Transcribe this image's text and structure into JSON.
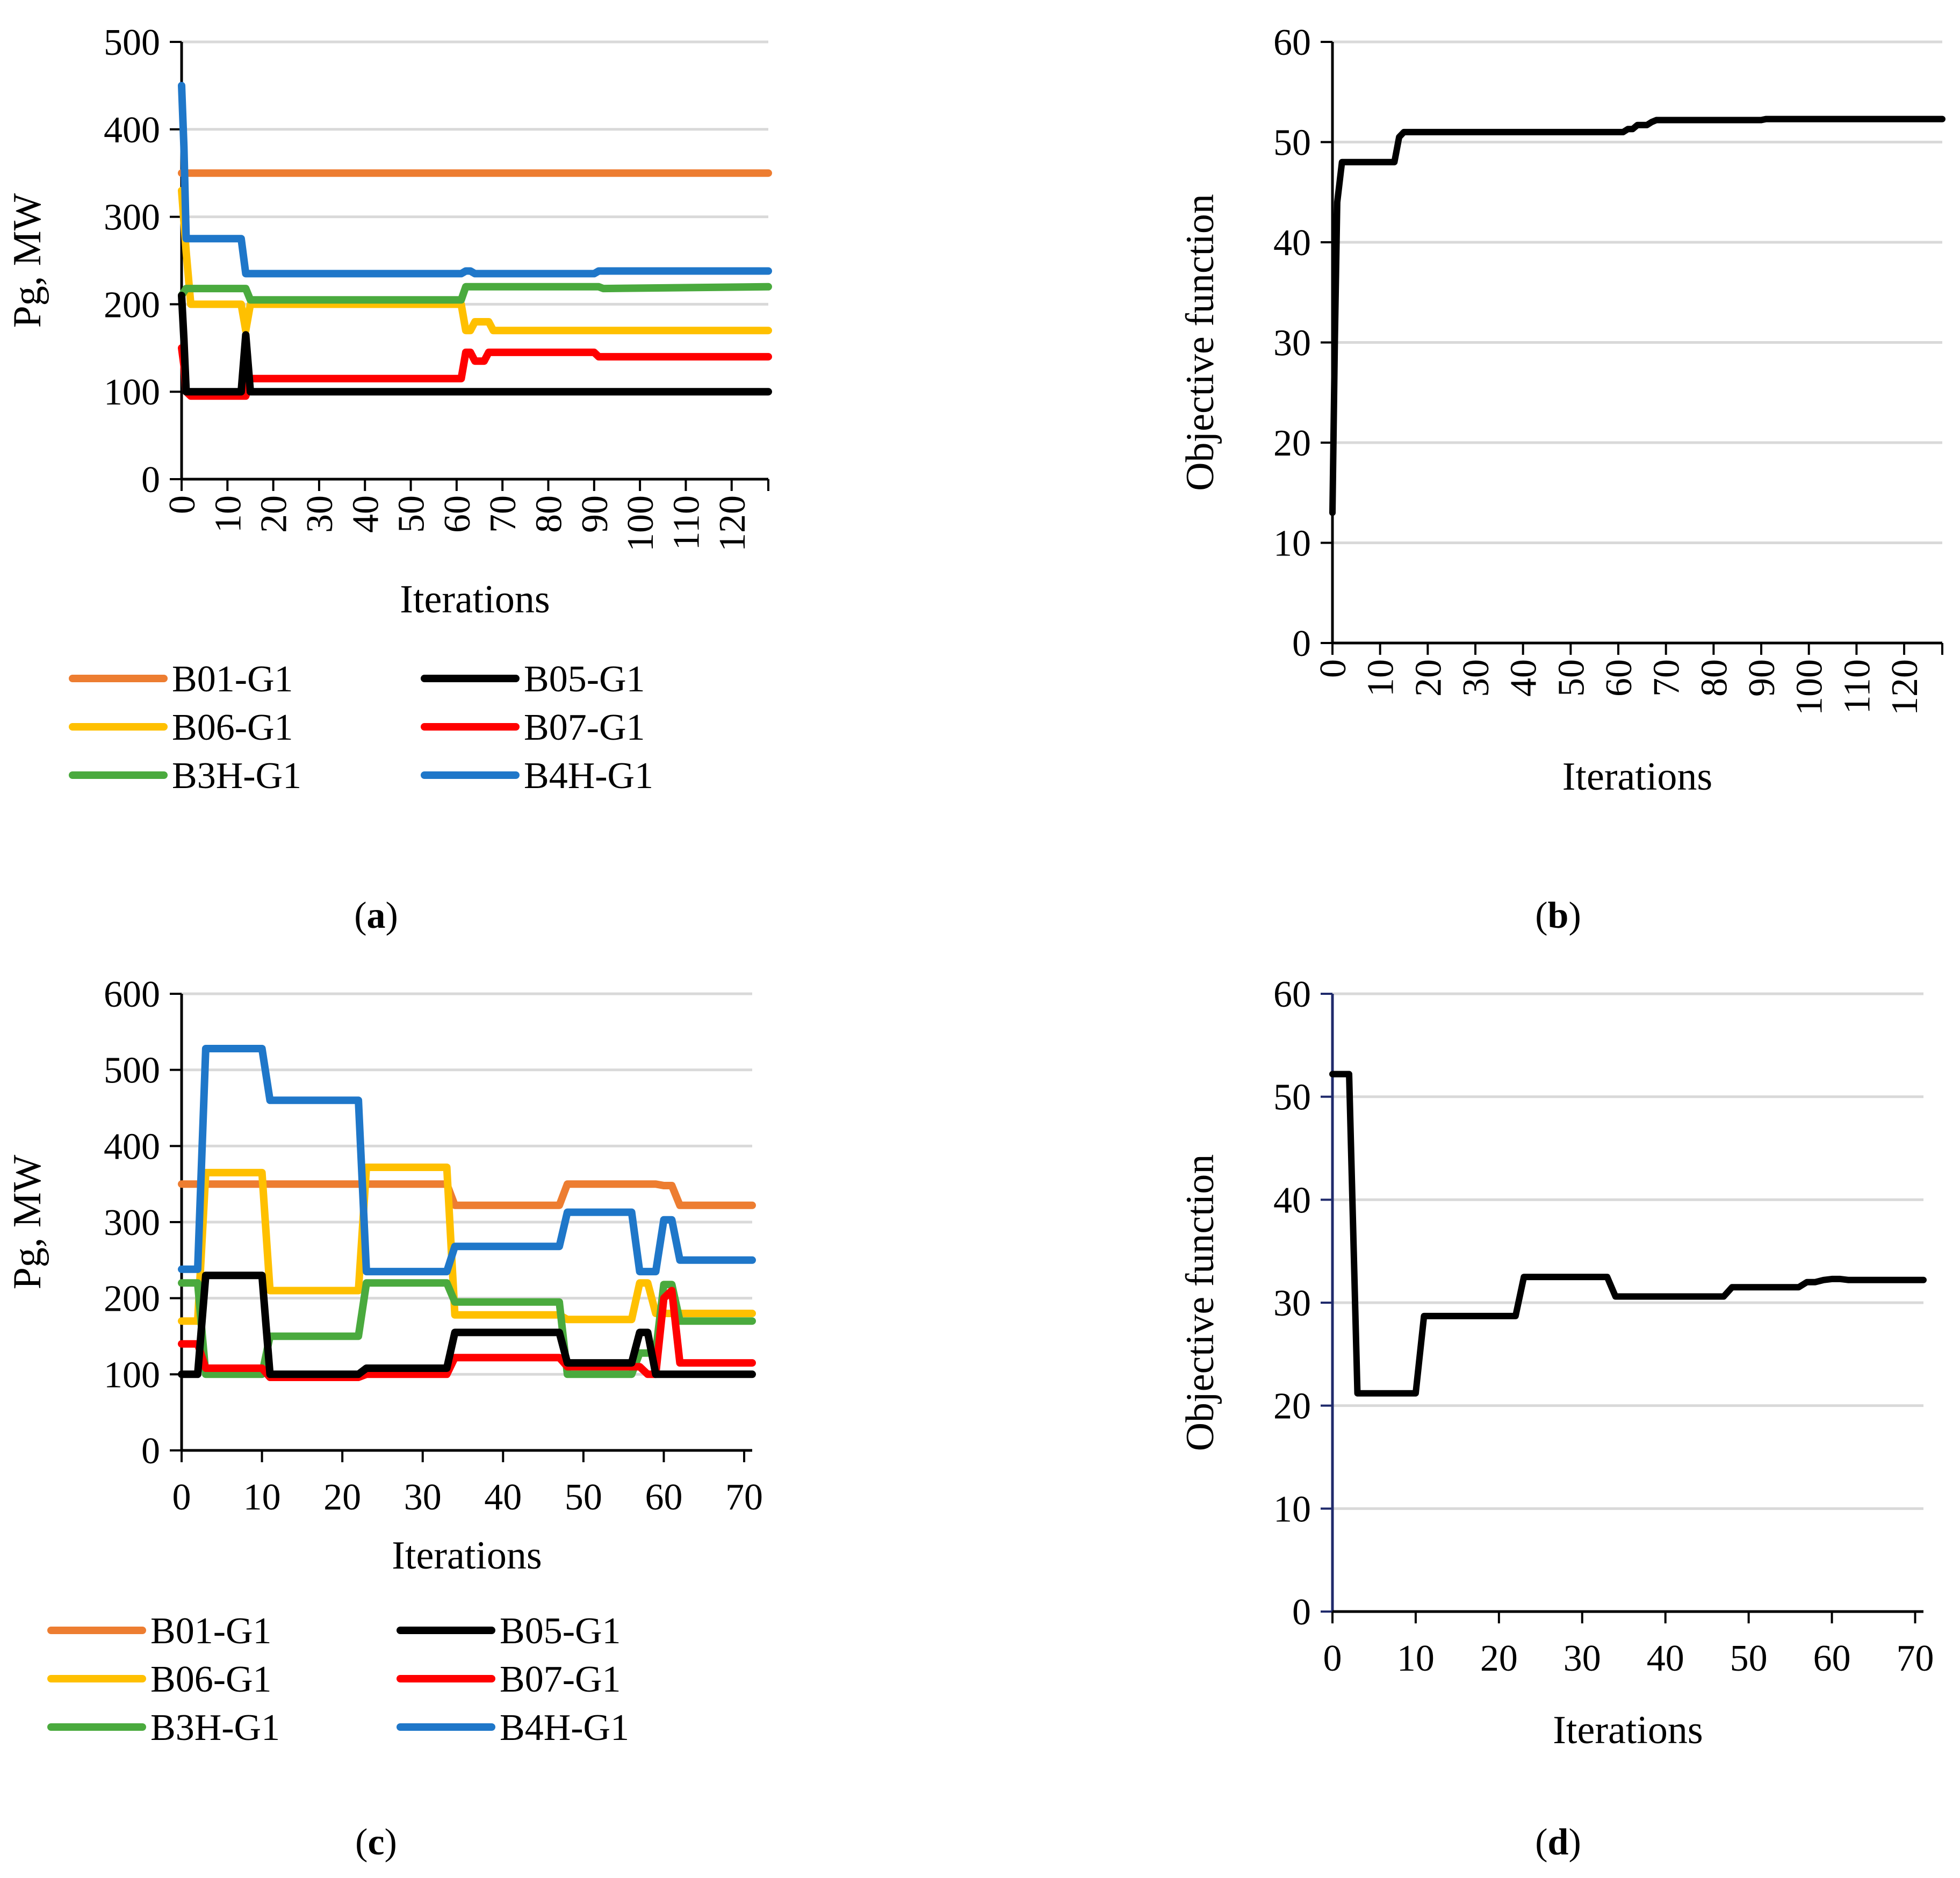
{
  "colors": {
    "B01-G1": "#ED7D31",
    "B05-G1": "#000000",
    "B06-G1": "#FFC000",
    "B07-G1": "#FF0000",
    "B3H-G1": "#4AAA3E",
    "B4H-G1": "#1F77C9",
    "grid": "#D9D9D9",
    "axis_d": "#1F2A6B"
  },
  "captions": {
    "a": "a",
    "b": "b",
    "c": "c",
    "d": "d"
  },
  "chart_data": [
    {
      "id": "a",
      "type": "line",
      "xlabel": "Iterations",
      "ylabel": "Pg,  MW",
      "ylim": [
        0,
        500
      ],
      "yticks": [
        "0",
        "100",
        "200",
        "300",
        "400",
        "500"
      ],
      "xlim": [
        0,
        128
      ],
      "xticks": [
        "0",
        "10",
        "20",
        "30",
        "40",
        "50",
        "60",
        "70",
        "80",
        "90",
        "100",
        "110",
        "120"
      ],
      "xtick_rotation": "vertical",
      "grid": "horizontal",
      "legend_position": "bottom",
      "series": [
        {
          "name": "B01-G1",
          "x": [
            0,
            1,
            128
          ],
          "y": [
            350,
            350,
            350
          ]
        },
        {
          "name": "B05-G1",
          "x": [
            0,
            0.5,
            1,
            2,
            13,
            14,
            15,
            128
          ],
          "y": [
            210,
            160,
            100,
            100,
            100,
            165,
            100,
            100
          ]
        },
        {
          "name": "B06-G1",
          "x": [
            0,
            1,
            2,
            13,
            14,
            15,
            61,
            62,
            63,
            64,
            67,
            68,
            128
          ],
          "y": [
            330,
            260,
            200,
            200,
            170,
            200,
            200,
            170,
            170,
            180,
            180,
            170,
            170
          ]
        },
        {
          "name": "B07-G1",
          "x": [
            0,
            0.5,
            1,
            2,
            14,
            15,
            61,
            62,
            63,
            64,
            66,
            67,
            90,
            91,
            128
          ],
          "y": [
            150,
            130,
            100,
            95,
            95,
            115,
            115,
            145,
            145,
            135,
            135,
            145,
            145,
            140,
            140
          ]
        },
        {
          "name": "B3H-G1",
          "x": [
            0,
            1,
            13,
            14,
            15,
            61,
            62,
            63,
            91,
            92,
            128
          ],
          "y": [
            210,
            218,
            218,
            218,
            205,
            205,
            220,
            220,
            220,
            218,
            220
          ]
        },
        {
          "name": "B4H-G1",
          "x": [
            0,
            0.5,
            1,
            13,
            14,
            15,
            61,
            62,
            63,
            64,
            90,
            91,
            92,
            128
          ],
          "y": [
            450,
            380,
            275,
            275,
            235,
            235,
            235,
            238,
            238,
            235,
            235,
            238,
            238,
            238
          ]
        }
      ],
      "legend": [
        "B01-G1",
        "B05-G1",
        "B06-G1",
        "B07-G1",
        "B3H-G1",
        "B4H-G1"
      ]
    },
    {
      "id": "b",
      "type": "line",
      "xlabel": "Iterations",
      "ylabel": "Objective function",
      "ylim": [
        0,
        60
      ],
      "yticks": [
        "0",
        "10",
        "20",
        "30",
        "40",
        "50",
        "60"
      ],
      "xlim": [
        0,
        128
      ],
      "xticks": [
        "0",
        "10",
        "20",
        "30",
        "40",
        "50",
        "60",
        "70",
        "80",
        "90",
        "100",
        "110",
        "120"
      ],
      "xtick_rotation": "vertical",
      "grid": "horizontal",
      "series": [
        {
          "name": "",
          "x": [
            0,
            0.5,
            1,
            2,
            13,
            14,
            15,
            61,
            62,
            63,
            64,
            66,
            67,
            68,
            90,
            91,
            128
          ],
          "y": [
            13,
            30,
            44,
            48,
            48,
            50.5,
            51,
            51,
            51.3,
            51.3,
            51.7,
            51.7,
            52,
            52.2,
            52.2,
            52.3,
            52.3
          ]
        }
      ]
    },
    {
      "id": "c",
      "type": "line",
      "xlabel": "Iterations",
      "ylabel": "Pg,  MW",
      "ylim": [
        0,
        600
      ],
      "yticks": [
        "0",
        "100",
        "200",
        "300",
        "400",
        "500",
        "600"
      ],
      "xlim": [
        0,
        71
      ],
      "xticks": [
        "0",
        "10",
        "20",
        "30",
        "40",
        "50",
        "60",
        "70"
      ],
      "grid": "horizontal",
      "legend_position": "bottom",
      "series": [
        {
          "name": "B01-G1",
          "x": [
            0,
            33,
            34,
            47,
            48,
            59,
            60,
            61,
            62,
            71
          ],
          "y": [
            350,
            350,
            322,
            322,
            350,
            350,
            348,
            348,
            322,
            322
          ]
        },
        {
          "name": "B05-G1",
          "x": [
            0,
            2,
            3,
            10,
            11,
            22,
            23,
            33,
            34,
            47,
            48,
            56,
            57,
            58,
            59,
            71
          ],
          "y": [
            100,
            100,
            230,
            230,
            100,
            100,
            108,
            108,
            155,
            155,
            115,
            115,
            155,
            155,
            100,
            100
          ]
        },
        {
          "name": "B06-G1",
          "x": [
            0,
            2,
            3,
            10,
            11,
            22,
            23,
            33,
            34,
            47,
            48,
            56,
            57,
            58,
            59,
            71
          ],
          "y": [
            170,
            170,
            365,
            365,
            210,
            210,
            372,
            372,
            178,
            178,
            172,
            172,
            220,
            220,
            180,
            180
          ]
        },
        {
          "name": "B07-G1",
          "x": [
            0,
            2,
            3,
            10,
            11,
            22,
            23,
            33,
            34,
            47,
            48,
            56,
            57,
            58,
            59,
            60,
            61,
            62,
            71
          ],
          "y": [
            140,
            140,
            108,
            108,
            96,
            96,
            100,
            100,
            122,
            122,
            110,
            110,
            110,
            100,
            100,
            200,
            210,
            115,
            115
          ]
        },
        {
          "name": "B3H-G1",
          "x": [
            0,
            2,
            3,
            10,
            11,
            22,
            23,
            33,
            34,
            47,
            48,
            56,
            57,
            58,
            59,
            60,
            61,
            62,
            71
          ],
          "y": [
            220,
            220,
            100,
            100,
            150,
            150,
            220,
            220,
            195,
            195,
            100,
            100,
            128,
            128,
            130,
            218,
            218,
            170,
            170
          ]
        },
        {
          "name": "B4H-G1",
          "x": [
            0,
            2,
            3,
            10,
            11,
            22,
            23,
            33,
            34,
            47,
            48,
            56,
            57,
            58,
            59,
            60,
            61,
            62,
            71
          ],
          "y": [
            238,
            238,
            528,
            528,
            460,
            460,
            235,
            235,
            268,
            268,
            313,
            313,
            235,
            235,
            235,
            303,
            303,
            250,
            250
          ]
        }
      ],
      "legend": [
        "B01-G1",
        "B05-G1",
        "B06-G1",
        "B07-G1",
        "B3H-G1",
        "B4H-G1"
      ]
    },
    {
      "id": "d",
      "type": "line",
      "xlabel": "Iterations",
      "ylabel": "Objective function",
      "ylim": [
        0,
        60
      ],
      "yticks": [
        "0",
        "10",
        "20",
        "30",
        "40",
        "50",
        "60"
      ],
      "xlim": [
        0,
        71
      ],
      "xticks": [
        "0",
        "10",
        "20",
        "30",
        "40",
        "50",
        "60",
        "70"
      ],
      "grid": "horizontal",
      "series": [
        {
          "name": "",
          "x": [
            0,
            2,
            3,
            10,
            11,
            22,
            23,
            33,
            34,
            47,
            48,
            56,
            57,
            58,
            59,
            60,
            61,
            62,
            71
          ],
          "y": [
            52.2,
            52.2,
            21.2,
            21.2,
            28.7,
            28.7,
            32.5,
            32.5,
            30.6,
            30.6,
            31.5,
            31.5,
            32,
            32,
            32.2,
            32.3,
            32.3,
            32.2,
            32.2
          ]
        }
      ]
    }
  ]
}
